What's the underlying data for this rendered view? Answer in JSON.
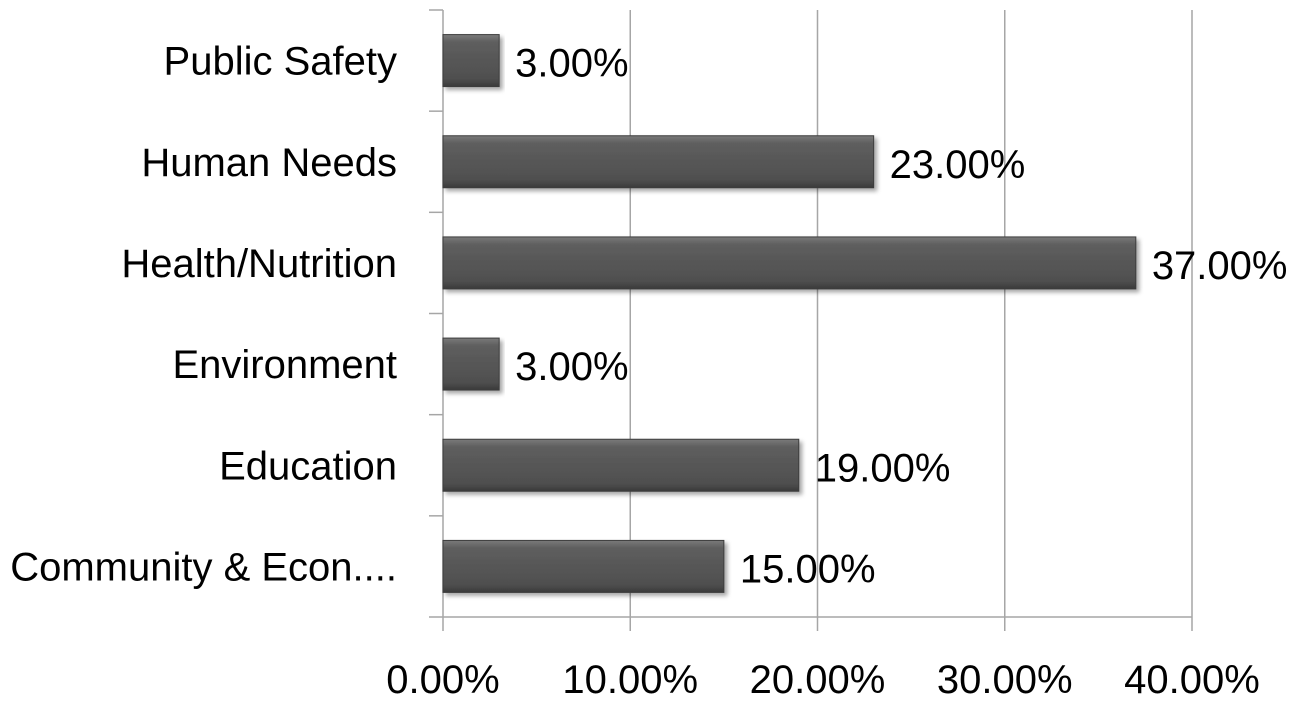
{
  "chart_data": {
    "type": "bar",
    "orientation": "horizontal",
    "categories": [
      "Community & Econ....",
      "Education",
      "Environment",
      "Health/Nutrition",
      "Human Needs",
      "Public Safety"
    ],
    "values": [
      15,
      19,
      3,
      37,
      23,
      3
    ],
    "data_labels": [
      "15.00%",
      "19.00%",
      "3.00%",
      "37.00%",
      "23.00%",
      "3.00%"
    ],
    "xlim": [
      0,
      40
    ],
    "xticks": [
      0,
      10,
      20,
      30,
      40
    ],
    "xtick_labels": [
      "0.00%",
      "10.00%",
      "20.00%",
      "30.00%",
      "40.00%"
    ],
    "grid": "vertical",
    "legend": "none",
    "bar_color": "#555555",
    "title": "",
    "xlabel": "",
    "ylabel": ""
  }
}
